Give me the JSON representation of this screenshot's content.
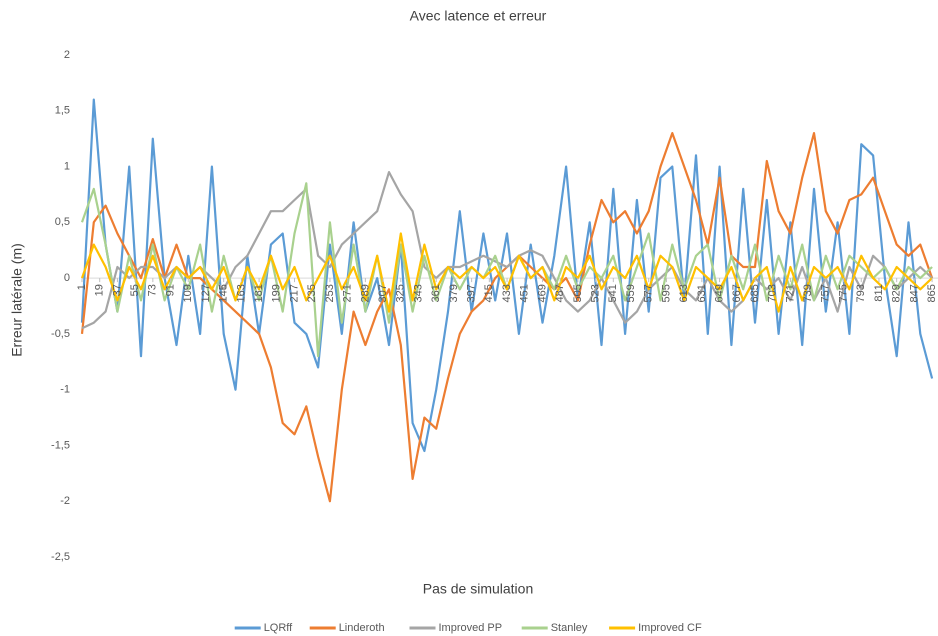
{
  "chart_data": {
    "type": "line",
    "title": "Avec latence et erreur",
    "x_label": "Pas de simulation",
    "y_label": "Erreur latérale  (m)",
    "x": [
      1,
      13,
      25,
      37,
      49,
      61,
      73,
      85,
      97,
      109,
      121,
      133,
      145,
      157,
      169,
      181,
      193,
      205,
      217,
      229,
      241,
      253,
      265,
      277,
      289,
      301,
      313,
      325,
      337,
      349,
      361,
      373,
      385,
      397,
      409,
      421,
      433,
      445,
      457,
      469,
      481,
      493,
      505,
      517,
      529,
      541,
      553,
      565,
      577,
      589,
      601,
      613,
      625,
      637,
      649,
      661,
      673,
      685,
      697,
      709,
      721,
      733,
      745,
      757,
      769,
      781,
      793,
      805,
      817,
      829,
      841,
      853,
      865
    ],
    "xlim": [
      1,
      871
    ],
    "xticks": [
      1,
      19,
      37,
      55,
      73,
      91,
      109,
      127,
      145,
      163,
      181,
      199,
      217,
      235,
      253,
      271,
      289,
      307,
      325,
      343,
      361,
      379,
      397,
      415,
      433,
      451,
      469,
      487,
      505,
      523,
      541,
      559,
      577,
      595,
      613,
      631,
      649,
      667,
      685,
      703,
      721,
      739,
      757,
      775,
      793,
      811,
      829,
      847,
      865
    ],
    "ylim": [
      -2.5,
      2
    ],
    "yticks": [
      {
        "value": 2,
        "label": "2"
      },
      {
        "value": 1.5,
        "label": "1,5"
      },
      {
        "value": 1,
        "label": "1"
      },
      {
        "value": 0.5,
        "label": "0,5"
      },
      {
        "value": 0,
        "label": "0"
      },
      {
        "value": -0.5,
        "label": "-0,5"
      },
      {
        "value": -1,
        "label": "-1"
      },
      {
        "value": -1.5,
        "label": "-1,5"
      },
      {
        "value": -2,
        "label": "-2"
      },
      {
        "value": -2.5,
        "label": "-2,5"
      }
    ],
    "grid": false,
    "legend": "bottom",
    "series": [
      {
        "name": "LQRff",
        "color": "#5b9bd5",
        "values": [
          -0.4,
          1.6,
          0.3,
          -0.3,
          1.0,
          -0.7,
          1.25,
          0.0,
          -0.6,
          0.2,
          -0.5,
          1.0,
          -0.5,
          -1.0,
          0.2,
          -0.5,
          0.3,
          0.4,
          -0.4,
          -0.5,
          -0.8,
          0.3,
          -0.5,
          0.5,
          -0.3,
          0.0,
          -0.6,
          0.3,
          -1.3,
          -1.55,
          -1.0,
          -0.3,
          0.6,
          -0.3,
          0.4,
          -0.2,
          0.4,
          -0.5,
          0.3,
          -0.4,
          0.2,
          1.0,
          -0.2,
          0.5,
          -0.6,
          0.8,
          -0.5,
          0.7,
          -0.3,
          0.9,
          1.0,
          -0.2,
          1.1,
          -0.5,
          1.0,
          -0.6,
          0.8,
          -0.4,
          0.7,
          -0.5,
          0.5,
          -0.6,
          0.8,
          -0.3,
          0.5,
          -0.5,
          1.2,
          1.1,
          0.0,
          -0.7,
          0.5,
          -0.5,
          -0.9
        ]
      },
      {
        "name": "Linderoth",
        "color": "#ed7d31",
        "values": [
          -0.5,
          0.5,
          0.65,
          0.4,
          0.2,
          0.0,
          0.35,
          0.0,
          0.3,
          0.0,
          0.0,
          -0.1,
          -0.2,
          -0.3,
          -0.4,
          -0.5,
          -0.8,
          -1.3,
          -1.4,
          -1.15,
          -1.6,
          -2.0,
          -1.0,
          -0.3,
          -0.6,
          -0.3,
          -0.1,
          -0.6,
          -1.8,
          -1.25,
          -1.35,
          -0.9,
          -0.5,
          -0.3,
          -0.2,
          0.0,
          0.1,
          0.2,
          0.1,
          0.0,
          -0.1,
          0.0,
          -0.2,
          0.3,
          0.7,
          0.5,
          0.6,
          0.4,
          0.6,
          1.0,
          1.3,
          1.0,
          0.7,
          0.3,
          0.9,
          0.2,
          0.1,
          0.1,
          1.05,
          0.6,
          0.4,
          0.9,
          1.3,
          0.6,
          0.4,
          0.7,
          0.75,
          0.9,
          0.6,
          0.3,
          0.2,
          0.3,
          0.0
        ]
      },
      {
        "name": "Improved PP",
        "color": "#a5a5a5",
        "values": [
          -0.45,
          -0.4,
          -0.3,
          0.1,
          0.0,
          0.1,
          0.1,
          0.0,
          0.1,
          0.0,
          0.1,
          0.0,
          -0.1,
          0.1,
          0.2,
          0.4,
          0.6,
          0.6,
          0.7,
          0.8,
          0.2,
          0.1,
          0.3,
          0.4,
          0.5,
          0.6,
          0.95,
          0.75,
          0.6,
          0.1,
          0.0,
          0.1,
          0.1,
          0.15,
          0.2,
          0.15,
          0.1,
          0.2,
          0.25,
          0.2,
          0.0,
          -0.2,
          -0.3,
          -0.2,
          0.0,
          -0.2,
          -0.4,
          -0.3,
          -0.1,
          0.0,
          0.1,
          -0.1,
          -0.2,
          0.0,
          -0.2,
          -0.3,
          -0.2,
          0.0,
          -0.1,
          0.0,
          -0.2,
          0.1,
          -0.2,
          0.0,
          -0.3,
          0.1,
          -0.1,
          0.2,
          0.1,
          -0.1,
          0.0,
          0.1,
          0.0
        ]
      },
      {
        "name": "Stanley",
        "color": "#a9d18e",
        "values": [
          0.5,
          0.8,
          0.3,
          -0.3,
          0.2,
          -0.2,
          0.3,
          -0.2,
          0.1,
          -0.1,
          0.3,
          -0.3,
          0.2,
          -0.2,
          0.1,
          -0.2,
          0.2,
          -0.3,
          0.4,
          0.85,
          -0.7,
          0.5,
          -0.4,
          0.3,
          -0.3,
          0.2,
          -0.4,
          0.3,
          -0.3,
          0.2,
          -0.2,
          0.1,
          -0.1,
          0.1,
          0.0,
          0.2,
          -0.1,
          0.2,
          0.0,
          0.1,
          -0.1,
          0.2,
          -0.1,
          0.1,
          0.0,
          0.2,
          -0.2,
          0.1,
          0.4,
          -0.2,
          0.3,
          -0.1,
          0.2,
          0.3,
          -0.2,
          0.2,
          -0.1,
          0.3,
          -0.2,
          0.2,
          -0.1,
          0.3,
          -0.2,
          0.2,
          -0.1,
          0.2,
          0.1,
          0.0,
          0.1,
          -0.1,
          0.1,
          0.0,
          0.1
        ]
      },
      {
        "name": "Improved CF",
        "color": "#ffc000",
        "values": [
          0.0,
          0.3,
          0.1,
          -0.2,
          0.1,
          -0.1,
          0.2,
          -0.1,
          0.1,
          0.0,
          0.1,
          -0.1,
          0.1,
          -0.2,
          0.1,
          -0.1,
          0.2,
          -0.1,
          0.1,
          -0.2,
          0.0,
          0.2,
          -0.1,
          0.1,
          -0.2,
          0.2,
          -0.3,
          0.4,
          -0.2,
          0.3,
          -0.1,
          0.1,
          0.0,
          0.1,
          0.0,
          0.1,
          -0.1,
          0.2,
          0.0,
          0.1,
          -0.2,
          0.1,
          0.0,
          0.2,
          -0.1,
          0.1,
          0.0,
          0.2,
          -0.1,
          0.2,
          0.1,
          -0.2,
          0.1,
          0.0,
          -0.1,
          0.1,
          -0.2,
          0.0,
          0.1,
          -0.3,
          0.1,
          -0.2,
          0.1,
          0.0,
          0.1,
          -0.1,
          0.2,
          0.0,
          -0.1,
          0.1,
          0.0,
          -0.1,
          0.0
        ]
      }
    ]
  }
}
